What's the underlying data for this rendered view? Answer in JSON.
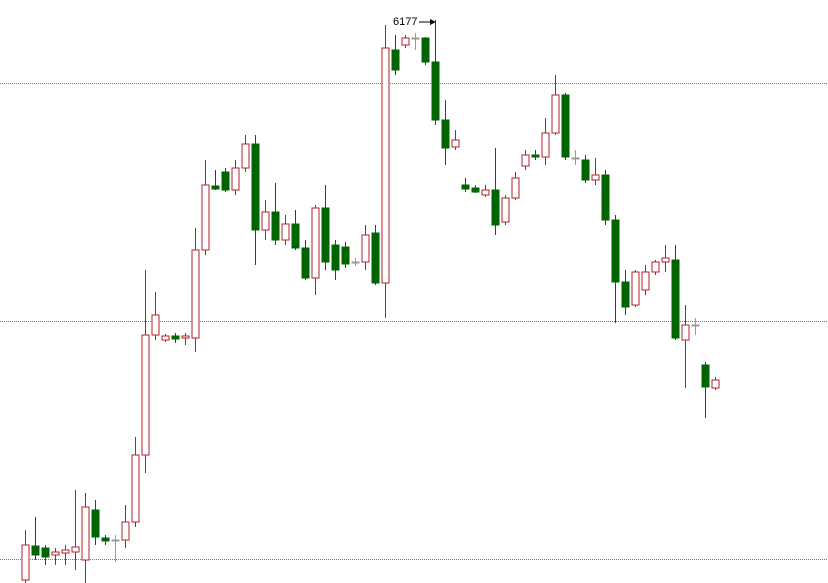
{
  "chart_data": {
    "type": "candlestick",
    "ylim": [
      5614,
      6197
    ],
    "gridlines": [
      6114,
      5876,
      5638
    ],
    "grid": true,
    "up_color": "#b0202a",
    "down_color": "#006400",
    "flat_color": "#999999",
    "open": [
      5617,
      5651,
      5649,
      5642,
      5644,
      5645,
      5637,
      5687,
      5659,
      5657,
      5657,
      5675,
      5742,
      5862,
      5857,
      5861,
      5859,
      5859,
      5947,
      6011,
      6025,
      6007,
      6029,
      6053,
      5967,
      5985,
      5957,
      5973,
      5949,
      5919,
      5989,
      5952,
      5950,
      5935,
      5935,
      5964,
      5914,
      6147,
      6152,
      6159,
      6159,
      6135,
      6077,
      6050,
      6012,
      6009,
      6002,
      6007,
      5975,
      5999,
      6031,
      6042,
      6040,
      6064,
      6102,
      6039,
      6037,
      6017,
      6022,
      5977,
      5915,
      5892,
      5907,
      5925,
      5935,
      5937,
      5857,
      5872,
      5832,
      5809
    ],
    "high": [
      5667,
      5680,
      5652,
      5649,
      5652,
      5707,
      5704,
      5697,
      5662,
      5662,
      5692,
      5760,
      5927,
      5905,
      5863,
      5864,
      5864,
      5969,
      6037,
      6027,
      6029,
      6037,
      6062,
      6062,
      5997,
      6014,
      5982,
      5987,
      5957,
      5992,
      6012,
      5957,
      5955,
      5939,
      5972,
      5972,
      6172,
      6162,
      6162,
      6164,
      6160,
      6177,
      6097,
      6067,
      6019,
      6012,
      6012,
      6049,
      6002,
      6025,
      6047,
      6047,
      6079,
      6122,
      6104,
      6047,
      6042,
      6039,
      6027,
      5982,
      5927,
      5927,
      5932,
      5937,
      5952,
      5952,
      5892,
      5879,
      5835,
      5820
    ],
    "low": [
      5614,
      5637,
      5632,
      5632,
      5632,
      5627,
      5614,
      5652,
      5652,
      5635,
      5649,
      5670,
      5724,
      5857,
      5855,
      5854,
      5852,
      5845,
      5942,
      6007,
      6005,
      6002,
      6025,
      5932,
      5957,
      5952,
      5952,
      5947,
      5917,
      5902,
      5927,
      5917,
      5929,
      5931,
      5927,
      5912,
      5879,
      6122,
      6149,
      6147,
      6132,
      6072,
      6032,
      6047,
      6005,
      6004,
      6000,
      5962,
      5972,
      5997,
      6027,
      6037,
      6032,
      6062,
      6037,
      6032,
      6014,
      6012,
      5972,
      5874,
      5882,
      5890,
      5902,
      5922,
      5925,
      5857,
      5809,
      5862,
      5779,
      5807
    ],
    "close": [
      5652,
      5642,
      5640,
      5645,
      5647,
      5650,
      5690,
      5660,
      5656,
      5657,
      5675,
      5742,
      5862,
      5882,
      5861,
      5858,
      5861,
      5947,
      6012,
      6008,
      6007,
      6029,
      6053,
      5967,
      5985,
      5957,
      5973,
      5949,
      5919,
      5989,
      5935,
      5927,
      5933,
      5935,
      5962,
      5914,
      6149,
      6127,
      6159,
      6159,
      6135,
      6077,
      6049,
      6057,
      6008,
      6005,
      6007,
      5972,
      5999,
      6019,
      6042,
      6040,
      6064,
      6102,
      6040,
      6039,
      6017,
      6022,
      5977,
      5915,
      5890,
      5925,
      5925,
      5935,
      5939,
      5859,
      5872,
      5872,
      5810,
      5817
    ]
  }
}
